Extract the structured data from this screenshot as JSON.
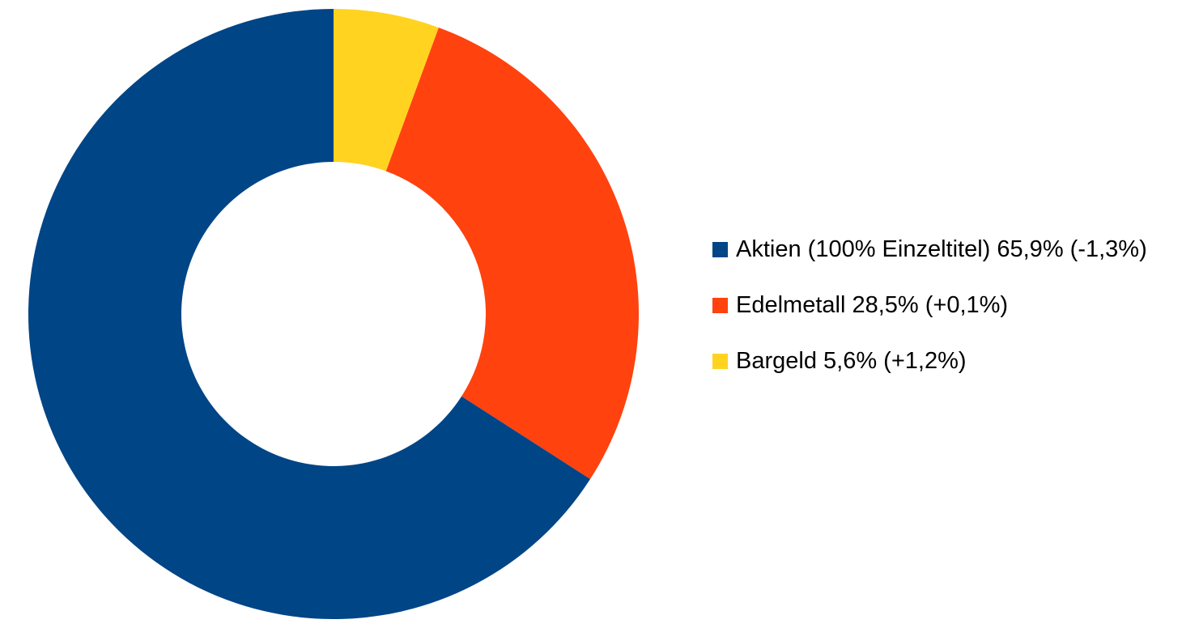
{
  "chart_data": {
    "type": "pie",
    "variant": "donut",
    "title": "",
    "slices": [
      {
        "label": "Aktien (100% Einzeltitel) 65,9% (-1,3%)",
        "value": 65.9,
        "color": "#004586"
      },
      {
        "label": "Edelmetall 28,5% (+0,1%)",
        "value": 28.5,
        "color": "#ff420e"
      },
      {
        "label": "Bargeld 5,6% (+1,2%)",
        "value": 5.6,
        "color": "#ffd320"
      }
    ],
    "legend_position": "right"
  }
}
